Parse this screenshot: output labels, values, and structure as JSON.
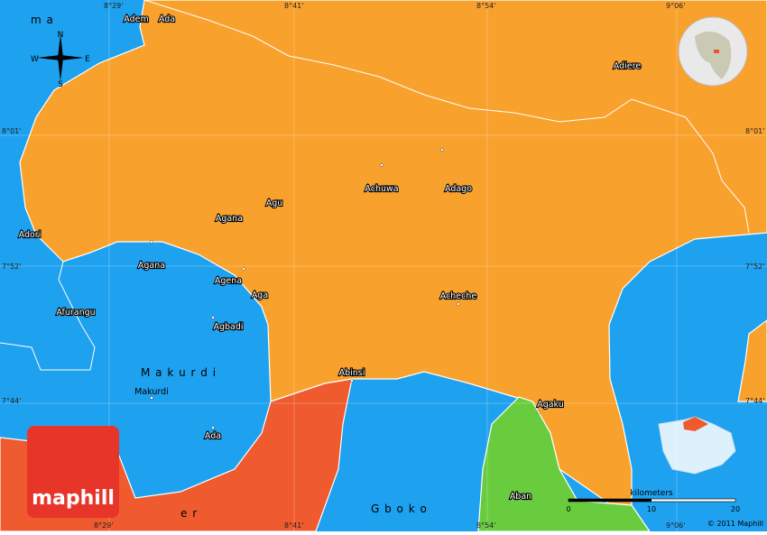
{
  "compass": {
    "n": "N",
    "e": "E",
    "s": "S",
    "w": "W"
  },
  "grid_labels": {
    "top": [
      "8°29'",
      "8°41'",
      "8°54'",
      "9°06'"
    ],
    "bottom": [
      "8°29'",
      "8°41'",
      "8°54'",
      "9°06'"
    ],
    "left": [
      "8°01'",
      "7°52'",
      "7°44'"
    ],
    "right": [
      "8°01'",
      "7°52'",
      "7°44'"
    ]
  },
  "places": [
    "Adem",
    "Ada",
    "Adiere",
    "Achuwa",
    "Adago",
    "Agu",
    "Agana",
    "Adori",
    "Agana",
    "Agena",
    "Aga",
    "Acheche",
    "Afurangu",
    "Agbadi",
    "Makurdi",
    "Abinsi",
    "Agaku",
    "Ada",
    "Aban"
  ],
  "regions": [
    "m a",
    "M a k u r d i",
    "G b o k o",
    "e r"
  ],
  "scale": {
    "title": "kilometers",
    "ticks": [
      "0",
      "10",
      "20"
    ]
  },
  "copyright": "© 2011 Maphill",
  "logo": "maphill"
}
